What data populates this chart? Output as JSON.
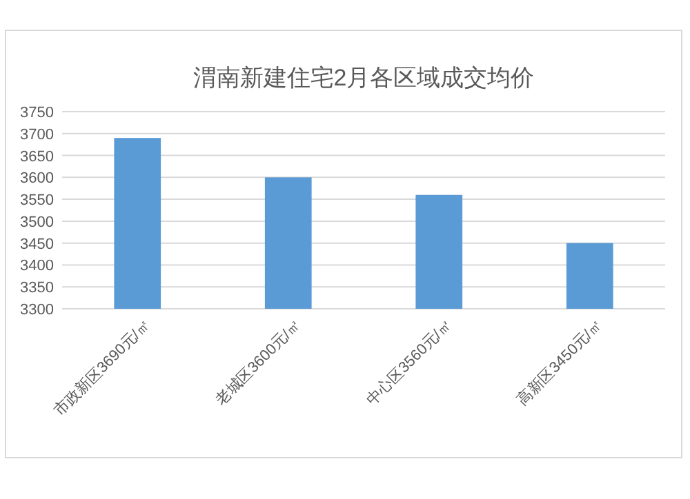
{
  "chart_data": {
    "type": "bar",
    "title": "渭南新建住宅2月各区域成交均价",
    "categories": [
      "市政新区3690元/㎡",
      "老城区3600元/㎡",
      "中心区3560元/㎡",
      "高新区3450元/㎡"
    ],
    "values": [
      3690,
      3600,
      3560,
      3450
    ],
    "color": "#5b9bd5",
    "ylim": [
      3300,
      3750
    ],
    "yticks": [
      3300,
      3350,
      3400,
      3450,
      3500,
      3550,
      3600,
      3650,
      3700,
      3750
    ],
    "grid": "y"
  }
}
